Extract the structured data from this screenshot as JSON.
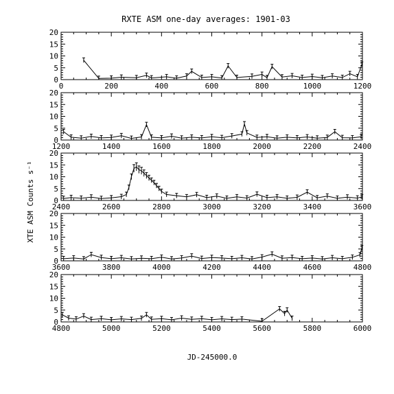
{
  "chart_data": {
    "type": "line",
    "title": "RXTE ASM one-day averages: 1901-03",
    "xlabel": "JD-245000.0",
    "ylabel": "XTE ASM Counts s⁻¹",
    "grid": false,
    "panels": [
      {
        "xlim": [
          0,
          1200
        ],
        "ylim": [
          0,
          20
        ],
        "xticks": [
          "0",
          "200",
          "400",
          "600",
          "800",
          "1000",
          "1200"
        ],
        "yticks": [
          "0",
          "5",
          "10",
          "15",
          "20"
        ],
        "points": [
          [
            90,
            8.2
          ],
          [
            150,
            0.5
          ],
          [
            200,
            0.6
          ],
          [
            240,
            1.0
          ],
          [
            300,
            0.8
          ],
          [
            340,
            1.8
          ],
          [
            360,
            0.7
          ],
          [
            420,
            1.2
          ],
          [
            460,
            0.6
          ],
          [
            500,
            1.5
          ],
          [
            520,
            3.5
          ],
          [
            560,
            0.9
          ],
          [
            600,
            1.2
          ],
          [
            640,
            0.7
          ],
          [
            665,
            5.8
          ],
          [
            700,
            0.9
          ],
          [
            760,
            1.4
          ],
          [
            800,
            2.2
          ],
          [
            820,
            0.8
          ],
          [
            840,
            5.5
          ],
          [
            880,
            1.1
          ],
          [
            920,
            1.6
          ],
          [
            960,
            0.9
          ],
          [
            1000,
            1.3
          ],
          [
            1040,
            0.8
          ],
          [
            1080,
            1.5
          ],
          [
            1120,
            0.9
          ],
          [
            1150,
            2.5
          ],
          [
            1180,
            1.2
          ],
          [
            1198,
            6.5
          ]
        ]
      },
      {
        "xlim": [
          1200,
          2400
        ],
        "ylim": [
          0,
          20
        ],
        "xticks": [
          "1200",
          "1400",
          "1600",
          "1800",
          "2000",
          "2200",
          "2400"
        ],
        "yticks": [
          "0",
          "5",
          "10",
          "15",
          "20"
        ],
        "points": [
          [
            1210,
            3.5
          ],
          [
            1240,
            1.2
          ],
          [
            1280,
            0.8
          ],
          [
            1320,
            1.5
          ],
          [
            1360,
            0.9
          ],
          [
            1400,
            1.1
          ],
          [
            1440,
            1.8
          ],
          [
            1480,
            0.7
          ],
          [
            1520,
            1.3
          ],
          [
            1540,
            6.5
          ],
          [
            1560,
            1.2
          ],
          [
            1600,
            0.9
          ],
          [
            1640,
            1.6
          ],
          [
            1680,
            0.8
          ],
          [
            1720,
            1.2
          ],
          [
            1760,
            0.9
          ],
          [
            1800,
            1.4
          ],
          [
            1840,
            1.0
          ],
          [
            1880,
            1.7
          ],
          [
            1920,
            2.5
          ],
          [
            1930,
            6.8
          ],
          [
            1940,
            3.0
          ],
          [
            1980,
            1.1
          ],
          [
            2020,
            1.4
          ],
          [
            2060,
            0.8
          ],
          [
            2100,
            1.2
          ],
          [
            2140,
            0.9
          ],
          [
            2180,
            1.3
          ],
          [
            2220,
            0.8
          ],
          [
            2260,
            1.1
          ],
          [
            2290,
            3.5
          ],
          [
            2320,
            1.0
          ],
          [
            2360,
            0.9
          ],
          [
            2395,
            1.4
          ]
        ]
      },
      {
        "xlim": [
          2400,
          3600
        ],
        "ylim": [
          0,
          20
        ],
        "xticks": [
          "2400",
          "2600",
          "2800",
          "3000",
          "3200",
          "3400",
          "3600"
        ],
        "yticks": [
          "0",
          "5",
          "10",
          "15",
          "20"
        ],
        "points": [
          [
            2410,
            0.8
          ],
          [
            2440,
            1.2
          ],
          [
            2480,
            0.9
          ],
          [
            2520,
            1.4
          ],
          [
            2560,
            0.8
          ],
          [
            2600,
            1.1
          ],
          [
            2640,
            1.6
          ],
          [
            2660,
            2.5
          ],
          [
            2670,
            5.5
          ],
          [
            2680,
            10.0
          ],
          [
            2690,
            13.5
          ],
          [
            2700,
            14.2
          ],
          [
            2710,
            13.0
          ],
          [
            2720,
            12.5
          ],
          [
            2730,
            11.5
          ],
          [
            2740,
            10.5
          ],
          [
            2750,
            9.5
          ],
          [
            2760,
            8.5
          ],
          [
            2770,
            7.5
          ],
          [
            2780,
            6.2
          ],
          [
            2790,
            5.0
          ],
          [
            2800,
            3.8
          ],
          [
            2820,
            2.5
          ],
          [
            2860,
            2.0
          ],
          [
            2900,
            1.5
          ],
          [
            2940,
            2.4
          ],
          [
            2980,
            1.2
          ],
          [
            3020,
            1.8
          ],
          [
            3060,
            0.9
          ],
          [
            3100,
            1.5
          ],
          [
            3140,
            1.0
          ],
          [
            3180,
            2.6
          ],
          [
            3220,
            1.2
          ],
          [
            3260,
            1.5
          ],
          [
            3300,
            0.9
          ],
          [
            3340,
            1.3
          ],
          [
            3380,
            3.5
          ],
          [
            3420,
            1.1
          ],
          [
            3460,
            1.8
          ],
          [
            3500,
            0.9
          ],
          [
            3540,
            1.4
          ],
          [
            3580,
            1.0
          ],
          [
            3598,
            1.5
          ]
        ]
      },
      {
        "xlim": [
          3600,
          4800
        ],
        "ylim": [
          0,
          20
        ],
        "xticks": [
          "3600",
          "3800",
          "4000",
          "4200",
          "4400",
          "4600",
          "4800"
        ],
        "yticks": [
          "0",
          "5",
          "10",
          "15",
          "20"
        ],
        "points": [
          [
            3610,
            0.9
          ],
          [
            3650,
            1.2
          ],
          [
            3690,
            0.8
          ],
          [
            3720,
            2.6
          ],
          [
            3760,
            1.4
          ],
          [
            3800,
            0.9
          ],
          [
            3840,
            1.3
          ],
          [
            3880,
            0.8
          ],
          [
            3920,
            1.1
          ],
          [
            3960,
            0.9
          ],
          [
            4000,
            1.5
          ],
          [
            4040,
            0.8
          ],
          [
            4080,
            1.2
          ],
          [
            4120,
            2.0
          ],
          [
            4160,
            1.0
          ],
          [
            4200,
            1.4
          ],
          [
            4240,
            1.2
          ],
          [
            4280,
            0.9
          ],
          [
            4320,
            1.3
          ],
          [
            4360,
            0.8
          ],
          [
            4400,
            1.6
          ],
          [
            4440,
            2.8
          ],
          [
            4480,
            1.1
          ],
          [
            4520,
            1.4
          ],
          [
            4560,
            0.9
          ],
          [
            4600,
            1.2
          ],
          [
            4640,
            0.8
          ],
          [
            4680,
            1.3
          ],
          [
            4720,
            0.9
          ],
          [
            4760,
            1.5
          ],
          [
            4790,
            2.5
          ],
          [
            4798,
            5.5
          ]
        ]
      },
      {
        "xlim": [
          4800,
          6000
        ],
        "ylim": [
          0,
          20
        ],
        "xticks": [
          "4800",
          "5000",
          "5200",
          "5400",
          "5600",
          "5800",
          "6000"
        ],
        "yticks": [
          "0",
          "5",
          "10",
          "15",
          "20"
        ],
        "points": [
          [
            4805,
            3.0
          ],
          [
            4830,
            1.6
          ],
          [
            4860,
            1.2
          ],
          [
            4890,
            2.5
          ],
          [
            4920,
            1.0
          ],
          [
            4960,
            1.4
          ],
          [
            5000,
            0.9
          ],
          [
            5040,
            1.3
          ],
          [
            5080,
            1.0
          ],
          [
            5120,
            1.5
          ],
          [
            5140,
            3.0
          ],
          [
            5160,
            1.1
          ],
          [
            5200,
            1.4
          ],
          [
            5240,
            0.9
          ],
          [
            5280,
            1.6
          ],
          [
            5320,
            1.1
          ],
          [
            5360,
            1.4
          ],
          [
            5400,
            0.9
          ],
          [
            5440,
            1.3
          ],
          [
            5480,
            1.0
          ],
          [
            5520,
            1.2
          ],
          [
            5600,
            0.3
          ],
          [
            5670,
            5.5
          ],
          [
            5690,
            3.5
          ],
          [
            5700,
            5.0
          ],
          [
            5720,
            1.5
          ]
        ]
      }
    ]
  }
}
